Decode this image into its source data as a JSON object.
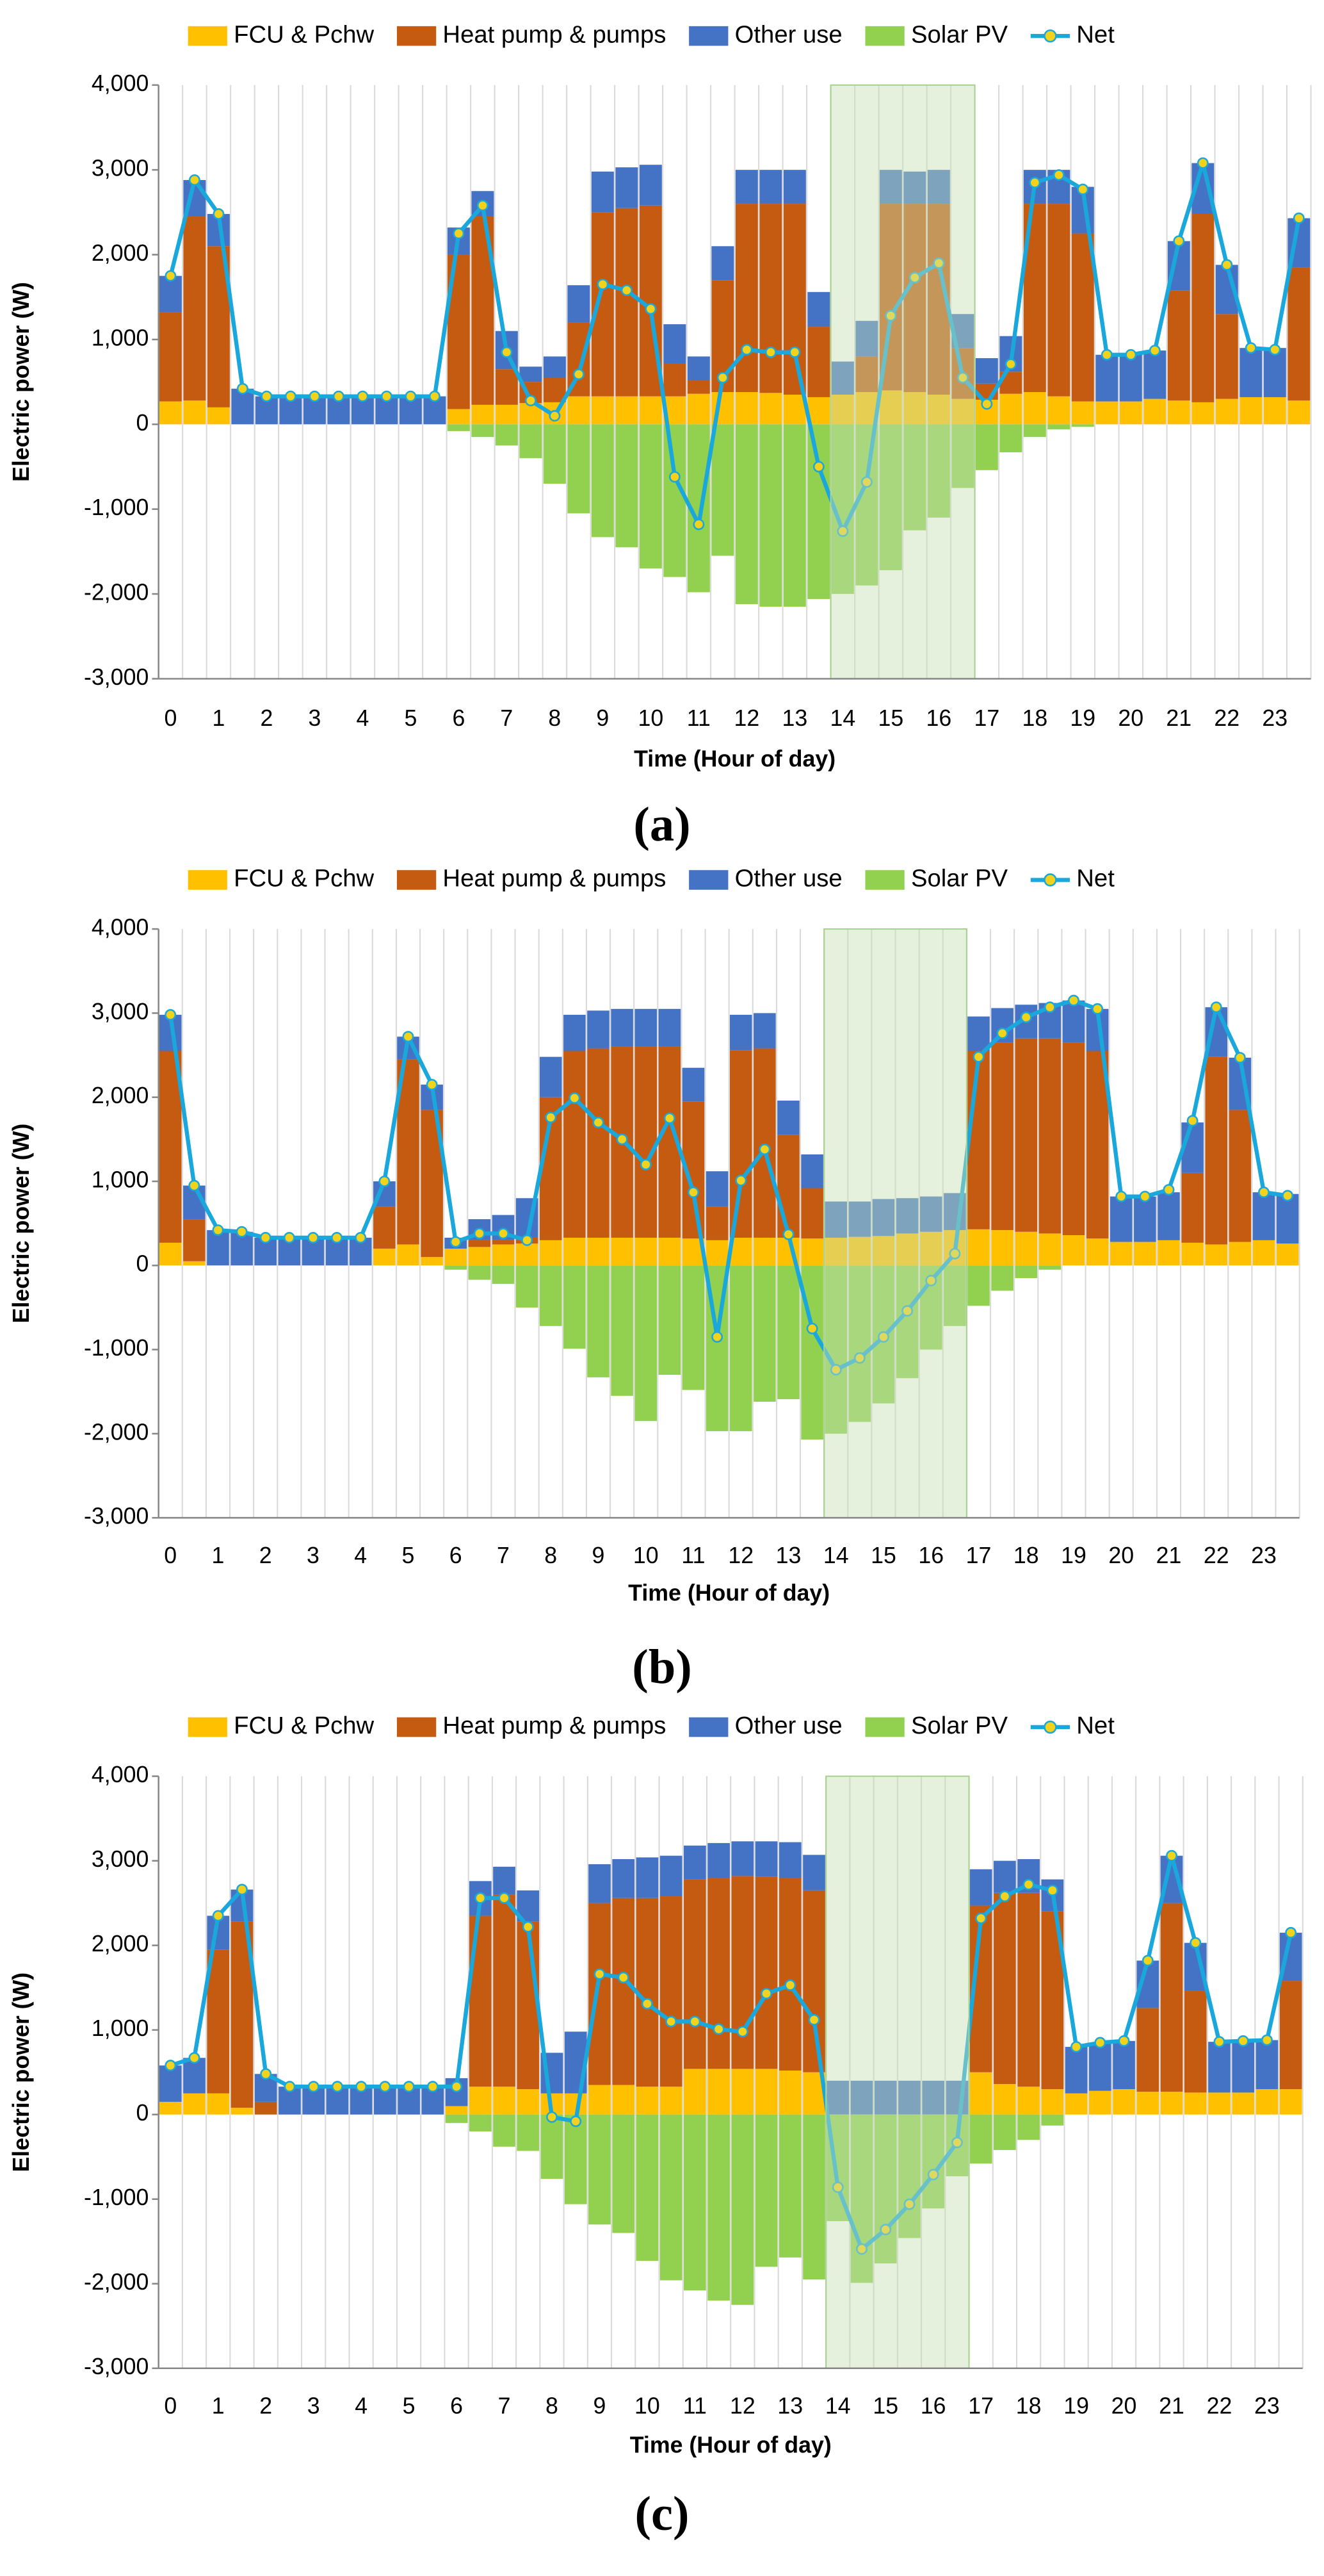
{
  "chart_data": [
    {
      "type": "bar",
      "stacked": true,
      "label": "(a)",
      "xlabel": "Time (Hour of day)",
      "ylabel": "Electric power (W)",
      "categories": [
        "0",
        null,
        "1",
        null,
        "2",
        null,
        "3",
        null,
        "4",
        null,
        "5",
        null,
        "6",
        null,
        "7",
        null,
        "8",
        null,
        "9",
        null,
        "10",
        null,
        "11",
        null,
        "12",
        null,
        "13",
        null,
        "14",
        null,
        "15",
        null,
        "16",
        null,
        "17",
        null,
        "18",
        null,
        "19",
        null,
        "20",
        null,
        "21",
        null,
        "22",
        null,
        "23",
        null
      ],
      "series": [
        {
          "name": "FCU & Pchw",
          "color": "#FFC000",
          "values": [
            270,
            280,
            200,
            0,
            0,
            0,
            0,
            0,
            0,
            0,
            0,
            0,
            180,
            230,
            230,
            250,
            260,
            330,
            330,
            330,
            330,
            330,
            360,
            380,
            380,
            370,
            350,
            320,
            350,
            380,
            400,
            380,
            350,
            300,
            290,
            360,
            380,
            330,
            270,
            270,
            270,
            300,
            280,
            260,
            300,
            320,
            320,
            280
          ]
        },
        {
          "name": "Heat pump & pumps",
          "color": "#C55A11",
          "values": [
            1050,
            2170,
            1900,
            0,
            0,
            0,
            0,
            0,
            0,
            0,
            0,
            0,
            1820,
            2220,
            420,
            250,
            290,
            870,
            2170,
            2220,
            2250,
            390,
            160,
            1320,
            2220,
            2230,
            2250,
            830,
            0,
            420,
            2200,
            2220,
            2250,
            600,
            190,
            260,
            2220,
            2270,
            1980,
            0,
            0,
            0,
            1300,
            2220,
            1000,
            0,
            0,
            1570
          ]
        },
        {
          "name": "Other use",
          "color": "#4472C4",
          "values": [
            430,
            430,
            380,
            420,
            330,
            330,
            330,
            330,
            330,
            330,
            330,
            330,
            320,
            300,
            450,
            180,
            250,
            440,
            480,
            480,
            480,
            460,
            280,
            400,
            400,
            400,
            400,
            410,
            390,
            420,
            400,
            380,
            400,
            400,
            300,
            420,
            400,
            400,
            550,
            550,
            550,
            570,
            580,
            600,
            580,
            580,
            580,
            580
          ]
        },
        {
          "name": "Solar PV",
          "color": "#92D050",
          "values": [
            0,
            0,
            0,
            0,
            0,
            0,
            0,
            0,
            0,
            0,
            0,
            0,
            -80,
            -150,
            -250,
            -400,
            -700,
            -1050,
            -1330,
            -1450,
            -1700,
            -1800,
            -1980,
            -1550,
            -2120,
            -2150,
            -2150,
            -2060,
            -2000,
            -1900,
            -1720,
            -1250,
            -1100,
            -750,
            -540,
            -330,
            -150,
            -60,
            -30,
            0,
            0,
            0,
            0,
            0,
            0,
            0,
            0,
            0
          ]
        },
        {
          "name": "Net",
          "type": "line",
          "color": "#1AA7DC",
          "marker_color": "#F2D21B",
          "values": [
            1750,
            2880,
            2480,
            420,
            330,
            330,
            330,
            330,
            330,
            330,
            330,
            330,
            2250,
            2580,
            850,
            280,
            100,
            590,
            1650,
            1580,
            1360,
            -620,
            -1180,
            550,
            880,
            850,
            850,
            -500,
            -1260,
            -680,
            1280,
            1730,
            1900,
            550,
            240,
            710,
            2850,
            2940,
            2770,
            820,
            820,
            870,
            2160,
            3080,
            1880,
            900,
            880,
            2430
          ]
        }
      ],
      "ylim": [
        -3000,
        4000
      ],
      "yticks": [
        {
          "value": -3000,
          "label": "-3,000"
        },
        {
          "value": -2000,
          "label": "-2,000"
        },
        {
          "value": -1000,
          "label": "-1,000"
        },
        0,
        {
          "value": 1000,
          "label": "1,000"
        },
        {
          "value": 2000,
          "label": "2,000"
        },
        {
          "value": 3000,
          "label": "3,000"
        },
        {
          "value": 4000,
          "label": "4,000"
        }
      ],
      "grid": "x",
      "legend": "top",
      "highlight": [
        28,
        34
      ]
    },
    {
      "type": "bar",
      "stacked": true,
      "label": "(b)",
      "xlabel": "Time (Hour of day)",
      "ylabel": "Electric power (W)",
      "categories": [
        "0",
        null,
        "1",
        null,
        "2",
        null,
        "3",
        null,
        "4",
        null,
        "5",
        null,
        "6",
        null,
        "7",
        null,
        "8",
        null,
        "9",
        null,
        "10",
        null,
        "11",
        null,
        "12",
        null,
        "13",
        null,
        "14",
        null,
        "15",
        null,
        "16",
        null,
        "17",
        null,
        "18",
        null,
        "19",
        null,
        "20",
        null,
        "21",
        null,
        "22",
        null,
        "23",
        null
      ],
      "series": [
        {
          "name": "FCU & Pchw",
          "color": "#FFC000",
          "values": [
            270,
            50,
            0,
            0,
            0,
            0,
            0,
            0,
            0,
            200,
            250,
            100,
            200,
            220,
            250,
            260,
            300,
            330,
            330,
            330,
            330,
            330,
            320,
            300,
            330,
            330,
            330,
            320,
            330,
            340,
            350,
            380,
            400,
            420,
            430,
            420,
            400,
            380,
            360,
            320,
            280,
            280,
            300,
            270,
            250,
            280,
            300,
            260
          ]
        },
        {
          "name": "Heat pump & pumps",
          "color": "#C55A11",
          "values": [
            2280,
            500,
            0,
            0,
            0,
            0,
            0,
            0,
            0,
            500,
            2200,
            1750,
            0,
            80,
            50,
            70,
            1700,
            2220,
            2250,
            2270,
            2270,
            2270,
            1630,
            400,
            2230,
            2250,
            1220,
            600,
            0,
            0,
            0,
            0,
            0,
            0,
            2120,
            2230,
            2300,
            2320,
            2290,
            2230,
            0,
            0,
            0,
            830,
            2230,
            1570,
            0,
            0
          ]
        },
        {
          "name": "Other use",
          "color": "#4472C4",
          "values": [
            430,
            400,
            420,
            400,
            330,
            330,
            330,
            330,
            330,
            300,
            270,
            300,
            130,
            250,
            300,
            470,
            480,
            430,
            450,
            450,
            450,
            450,
            400,
            420,
            420,
            420,
            410,
            400,
            430,
            420,
            440,
            420,
            420,
            440,
            410,
            410,
            400,
            420,
            500,
            500,
            540,
            540,
            570,
            600,
            590,
            620,
            570,
            590
          ]
        },
        {
          "name": "Solar PV",
          "color": "#92D050",
          "values": [
            0,
            0,
            0,
            0,
            0,
            0,
            0,
            0,
            0,
            0,
            0,
            0,
            -50,
            -170,
            -220,
            -500,
            -720,
            -990,
            -1330,
            -1550,
            -1850,
            -1300,
            -1480,
            -1970,
            -1970,
            -1620,
            -1590,
            -2070,
            -2000,
            -1860,
            -1640,
            -1340,
            -1000,
            -720,
            -480,
            -300,
            -150,
            -50,
            0,
            0,
            0,
            0,
            0,
            0,
            0,
            0,
            0,
            0
          ]
        },
        {
          "name": "Net",
          "type": "line",
          "color": "#1AA7DC",
          "marker_color": "#F2D21B",
          "values": [
            2980,
            950,
            420,
            400,
            330,
            330,
            330,
            330,
            330,
            1000,
            2720,
            2150,
            280,
            380,
            380,
            300,
            1760,
            1990,
            1700,
            1500,
            1200,
            1750,
            870,
            -850,
            1010,
            1380,
            370,
            -750,
            -1240,
            -1100,
            -850,
            -540,
            -180,
            140,
            2480,
            2760,
            2950,
            3070,
            3150,
            3050,
            820,
            820,
            900,
            1720,
            3070,
            2470,
            870,
            830
          ]
        }
      ],
      "ylim": [
        -3000,
        4000
      ],
      "yticks": [
        {
          "value": -3000,
          "label": "-3,000"
        },
        {
          "value": -2000,
          "label": "-2,000"
        },
        {
          "value": -1000,
          "label": "-1,000"
        },
        0,
        {
          "value": 1000,
          "label": "1,000"
        },
        {
          "value": 2000,
          "label": "2,000"
        },
        {
          "value": 3000,
          "label": "3,000"
        },
        {
          "value": 4000,
          "label": "4,000"
        }
      ],
      "grid": "x",
      "legend": "top",
      "highlight": [
        28,
        34
      ]
    },
    {
      "type": "bar",
      "stacked": true,
      "label": "(c)",
      "xlabel": "Time (Hour of day)",
      "ylabel": "Electric power (W)",
      "categories": [
        "0",
        null,
        "1",
        null,
        "2",
        null,
        "3",
        null,
        "4",
        null,
        "5",
        null,
        "6",
        null,
        "7",
        null,
        "8",
        null,
        "9",
        null,
        "10",
        null,
        "11",
        null,
        "12",
        null,
        "13",
        null,
        "14",
        null,
        "15",
        null,
        "16",
        null,
        "17",
        null,
        "18",
        null,
        "19",
        null,
        "20",
        null,
        "21",
        null,
        "22",
        null,
        "23",
        null
      ],
      "series": [
        {
          "name": "FCU & Pchw",
          "color": "#FFC000",
          "values": [
            150,
            250,
            250,
            80,
            0,
            0,
            0,
            0,
            0,
            0,
            0,
            0,
            100,
            330,
            330,
            300,
            250,
            250,
            350,
            350,
            330,
            330,
            540,
            540,
            540,
            540,
            520,
            500,
            0,
            0,
            0,
            0,
            0,
            0,
            500,
            360,
            330,
            300,
            250,
            280,
            300,
            270,
            270,
            260,
            260,
            260,
            300,
            300
          ]
        },
        {
          "name": "Heat pump & pumps",
          "color": "#C55A11",
          "values": [
            0,
            0,
            1700,
            2200,
            150,
            0,
            0,
            0,
            0,
            0,
            0,
            0,
            0,
            2020,
            2270,
            1980,
            0,
            0,
            2150,
            2210,
            2230,
            2250,
            2240,
            2260,
            2280,
            2270,
            2280,
            2150,
            0,
            0,
            0,
            0,
            0,
            0,
            1970,
            2260,
            2290,
            2100,
            0,
            0,
            0,
            990,
            2230,
            1200,
            0,
            0,
            0,
            1280
          ]
        },
        {
          "name": "Other use",
          "color": "#4472C4",
          "values": [
            430,
            420,
            400,
            380,
            330,
            330,
            330,
            330,
            330,
            330,
            330,
            330,
            330,
            410,
            330,
            370,
            480,
            730,
            460,
            460,
            480,
            480,
            400,
            410,
            410,
            420,
            420,
            420,
            400,
            400,
            400,
            400,
            400,
            400,
            430,
            380,
            400,
            380,
            550,
            570,
            570,
            560,
            560,
            570,
            600,
            610,
            580,
            570
          ]
        },
        {
          "name": "Solar PV",
          "color": "#92D050",
          "values": [
            0,
            0,
            0,
            0,
            0,
            0,
            0,
            0,
            0,
            0,
            0,
            0,
            -100,
            -200,
            -380,
            -430,
            -760,
            -1060,
            -1300,
            -1400,
            -1730,
            -1960,
            -2080,
            -2200,
            -2250,
            -1800,
            -1690,
            -1950,
            -1260,
            -1990,
            -1760,
            -1460,
            -1110,
            -730,
            -580,
            -420,
            -300,
            -130,
            0,
            0,
            0,
            0,
            0,
            0,
            0,
            0,
            0,
            0
          ]
        },
        {
          "name": "Net",
          "type": "line",
          "color": "#1AA7DC",
          "marker_color": "#F2D21B",
          "values": [
            580,
            670,
            2350,
            2660,
            480,
            330,
            330,
            330,
            330,
            330,
            330,
            330,
            330,
            2560,
            2560,
            2220,
            -30,
            -80,
            1660,
            1620,
            1310,
            1100,
            1100,
            1010,
            980,
            1430,
            1530,
            1120,
            -860,
            -1590,
            -1360,
            -1060,
            -710,
            -330,
            2320,
            2580,
            2720,
            2650,
            800,
            850,
            870,
            1820,
            3060,
            2030,
            860,
            870,
            880,
            2150
          ]
        }
      ],
      "ylim": [
        -3000,
        4000
      ],
      "yticks": [
        {
          "value": -3000,
          "label": "-3,000"
        },
        {
          "value": -2000,
          "label": "-2,000"
        },
        {
          "value": -1000,
          "label": "-1,000"
        },
        0,
        {
          "value": 1000,
          "label": "1,000"
        },
        {
          "value": 2000,
          "label": "2,000"
        },
        {
          "value": 3000,
          "label": "3,000"
        },
        {
          "value": 4000,
          "label": "4,000"
        }
      ],
      "grid": "x",
      "legend": "top",
      "highlight": [
        28,
        34
      ]
    }
  ]
}
